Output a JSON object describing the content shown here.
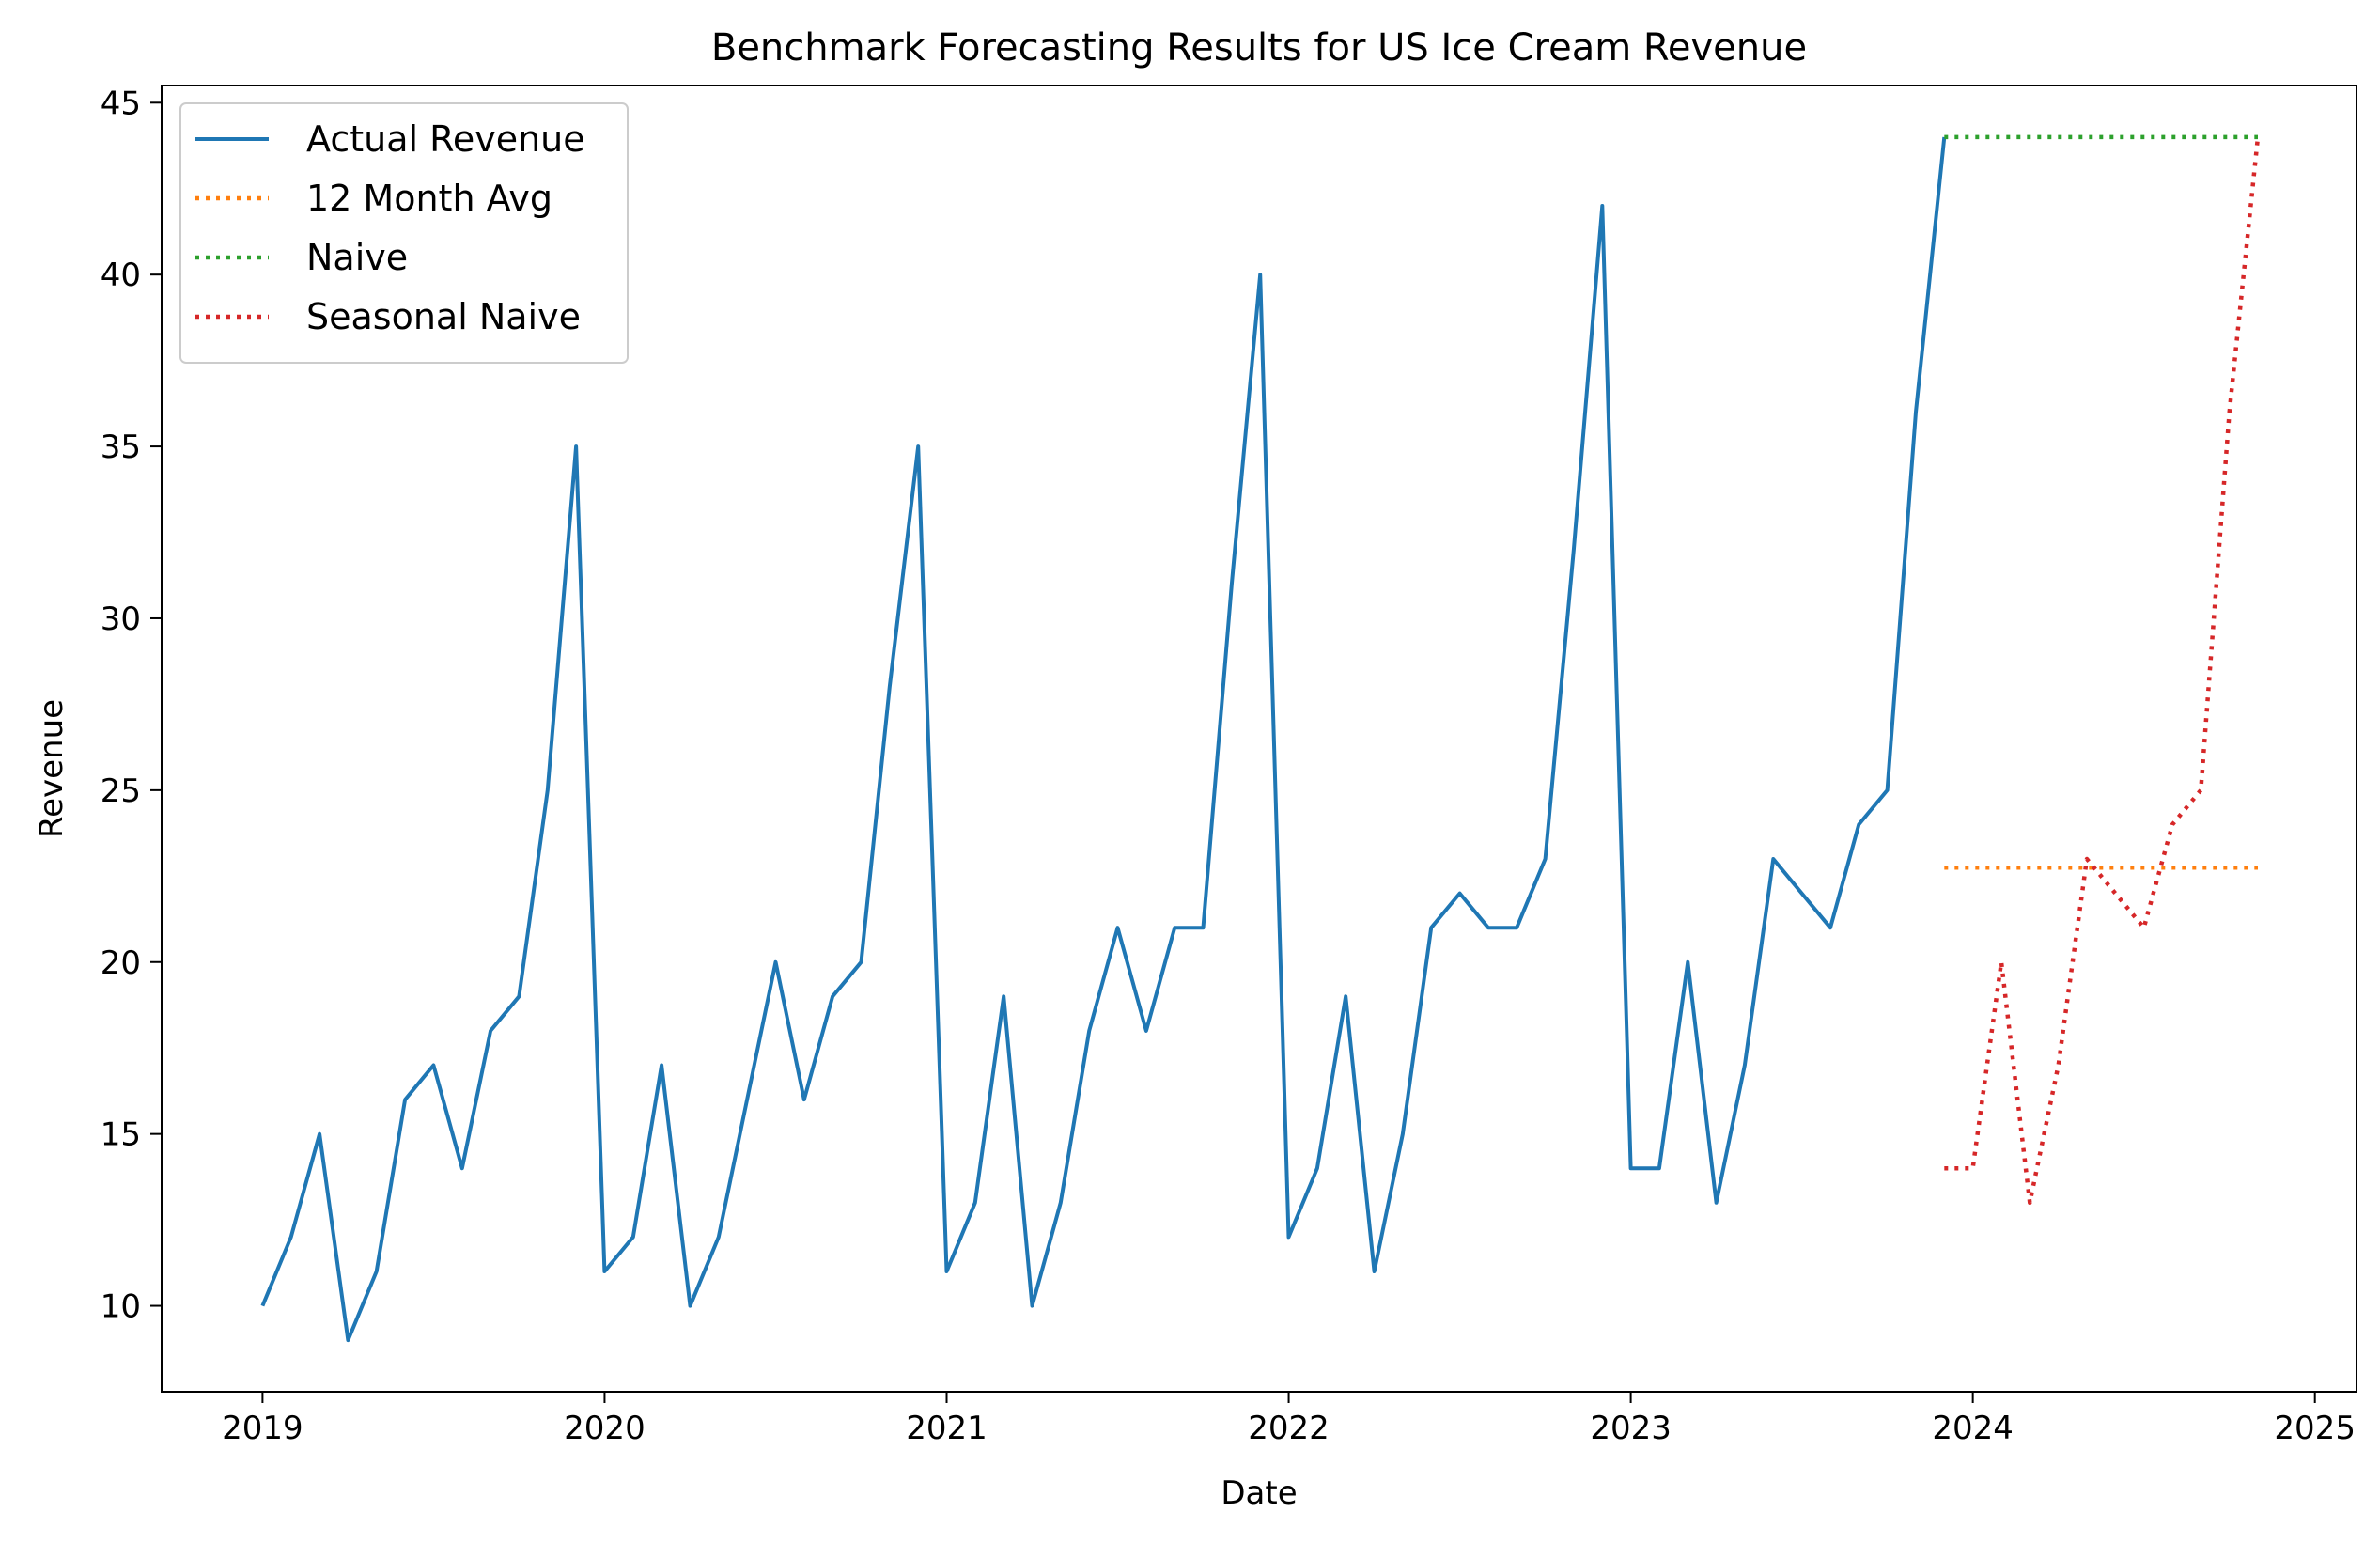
{
  "chart_data": {
    "type": "line",
    "title": "Benchmark Forecasting Results for US Ice Cream Revenue",
    "xlabel": "Date",
    "ylabel": "Revenue",
    "xlim": [
      "2018-09-15",
      "2025-02-15"
    ],
    "ylim": [
      7.5,
      45.5
    ],
    "x_ticks": [
      "2019",
      "2020",
      "2021",
      "2022",
      "2023",
      "2024",
      "2025"
    ],
    "y_ticks": [
      10,
      15,
      20,
      25,
      30,
      35,
      40,
      45
    ],
    "grid": false,
    "legend_position": "top-left",
    "series": [
      {
        "name": "Actual Revenue",
        "color": "#1f77b4",
        "style": "solid",
        "x": [
          "2019-01",
          "2019-02",
          "2019-03",
          "2019-04",
          "2019-05",
          "2019-06",
          "2019-07",
          "2019-08",
          "2019-09",
          "2019-10",
          "2019-11",
          "2019-12",
          "2020-01",
          "2020-02",
          "2020-03",
          "2020-04",
          "2020-05",
          "2020-06",
          "2020-07",
          "2020-08",
          "2020-09",
          "2020-10",
          "2020-11",
          "2020-12",
          "2021-01",
          "2021-02",
          "2021-03",
          "2021-04",
          "2021-05",
          "2021-06",
          "2021-07",
          "2021-08",
          "2021-09",
          "2021-10",
          "2021-11",
          "2021-12",
          "2022-01",
          "2022-02",
          "2022-03",
          "2022-04",
          "2022-05",
          "2022-06",
          "2022-07",
          "2022-08",
          "2022-09",
          "2022-10",
          "2022-11",
          "2022-12",
          "2023-01",
          "2023-02",
          "2023-03",
          "2023-04",
          "2023-05",
          "2023-06",
          "2023-07",
          "2023-08",
          "2023-09",
          "2023-10",
          "2023-11",
          "2023-12"
        ],
        "y": [
          10,
          12,
          15,
          9,
          11,
          16,
          17,
          14,
          18,
          19,
          25,
          35,
          11,
          12,
          17,
          10,
          12,
          16,
          20,
          16,
          19,
          20,
          28,
          35,
          11,
          13,
          19,
          10,
          13,
          18,
          21,
          18,
          21,
          21,
          31,
          40,
          12,
          14,
          19,
          11,
          15,
          21,
          22,
          21,
          21,
          23,
          32,
          42,
          14,
          14,
          20,
          13,
          17,
          23,
          22,
          21,
          24,
          25,
          36,
          44
        ]
      },
      {
        "name": "12 Month Avg",
        "color": "#ff7f0e",
        "style": "dotted",
        "x": [
          "2023-12",
          "2024-01",
          "2024-02",
          "2024-03",
          "2024-04",
          "2024-05",
          "2024-06",
          "2024-07",
          "2024-08",
          "2024-09",
          "2024-10",
          "2024-11"
        ],
        "y": [
          22.75,
          22.75,
          22.75,
          22.75,
          22.75,
          22.75,
          22.75,
          22.75,
          22.75,
          22.75,
          22.75,
          22.75
        ]
      },
      {
        "name": "Naive",
        "color": "#2ca02c",
        "style": "dotted",
        "x": [
          "2023-12",
          "2024-01",
          "2024-02",
          "2024-03",
          "2024-04",
          "2024-05",
          "2024-06",
          "2024-07",
          "2024-08",
          "2024-09",
          "2024-10",
          "2024-11"
        ],
        "y": [
          44,
          44,
          44,
          44,
          44,
          44,
          44,
          44,
          44,
          44,
          44,
          44
        ]
      },
      {
        "name": "Seasonal Naive",
        "color": "#d62728",
        "style": "dotted",
        "x": [
          "2023-12",
          "2024-01",
          "2024-02",
          "2024-03",
          "2024-04",
          "2024-05",
          "2024-06",
          "2024-07",
          "2024-08",
          "2024-09",
          "2024-10",
          "2024-11"
        ],
        "y": [
          14,
          14,
          20,
          13,
          17,
          23,
          22,
          21,
          24,
          25,
          36,
          44
        ]
      }
    ]
  }
}
